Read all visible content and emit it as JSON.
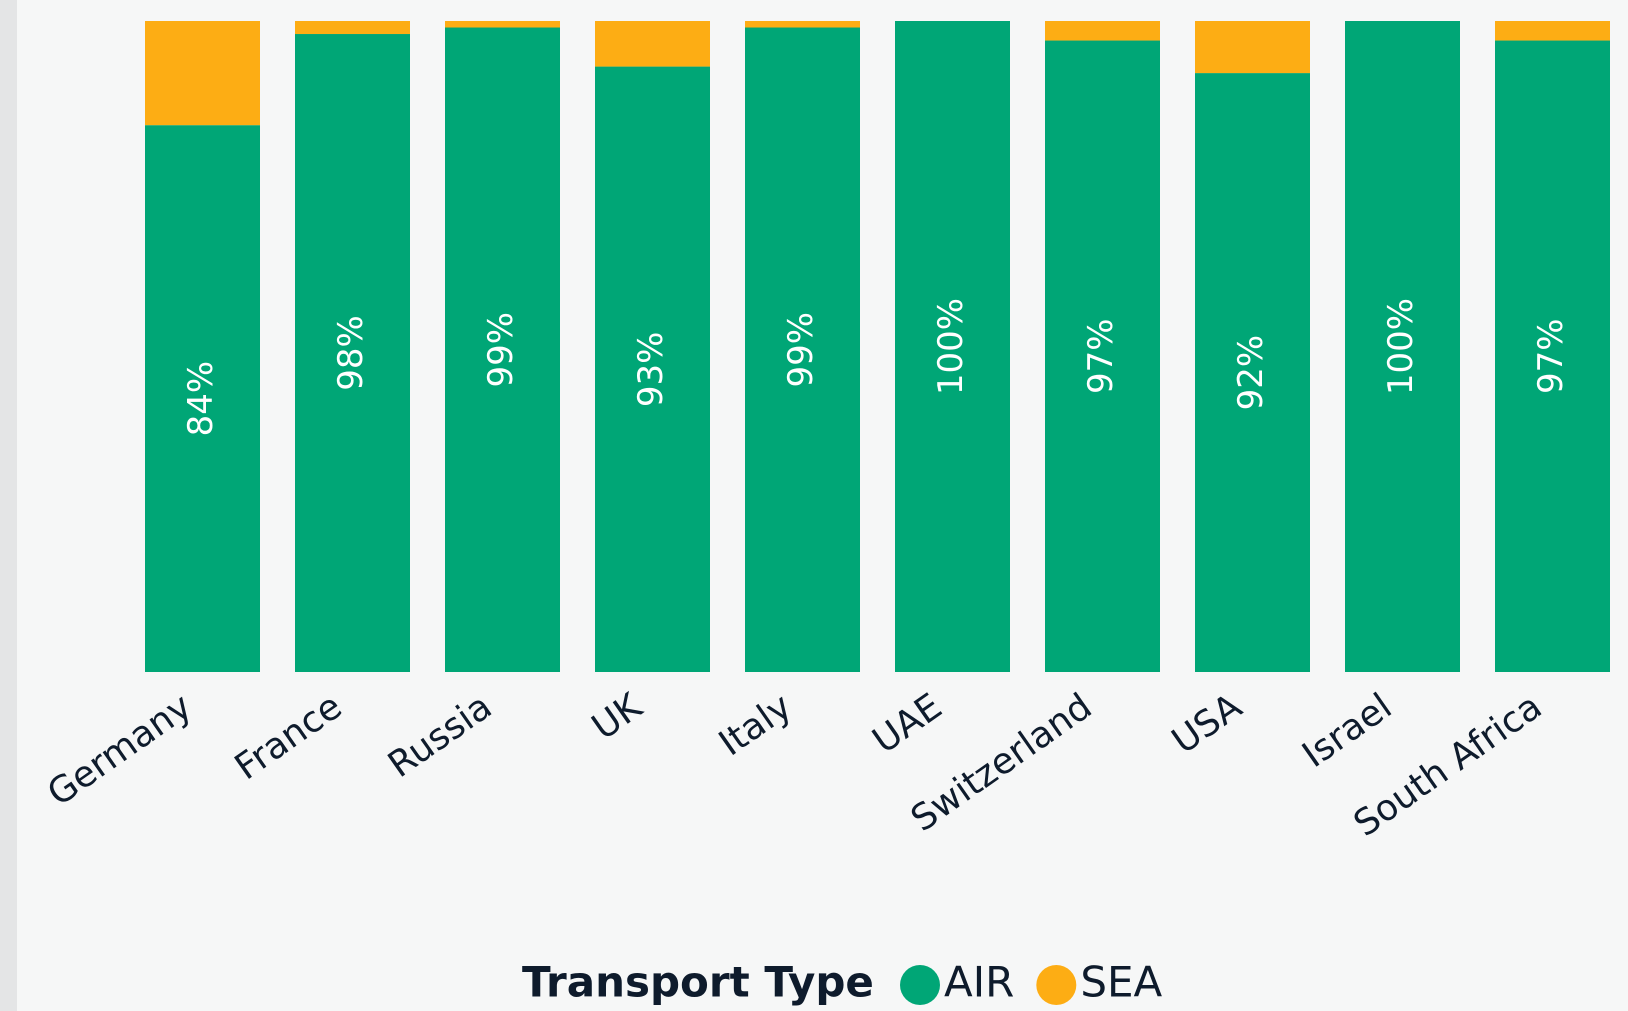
{
  "chart_data": {
    "type": "stacked_bar",
    "categories": [
      "Germany",
      "France",
      "Russia",
      "UK",
      "Italy",
      "UAE",
      "Switzerland",
      "USA",
      "Israel",
      "South Africa"
    ],
    "series": [
      {
        "name": "AIR",
        "color": "#00a676",
        "values": [
          84,
          98,
          99,
          93,
          99,
          100,
          97,
          92,
          100,
          97
        ],
        "value_labels": [
          "84%",
          "98%",
          "99%",
          "93%",
          "99%",
          "100%",
          "97%",
          "92%",
          "100%",
          "97%"
        ]
      },
      {
        "name": "SEA",
        "color": "#fdad14",
        "values": [
          16,
          2,
          1,
          7,
          1,
          0,
          3,
          8,
          0,
          3
        ]
      }
    ],
    "ylim": [
      0,
      100
    ],
    "legend_title": "Transport Type"
  }
}
